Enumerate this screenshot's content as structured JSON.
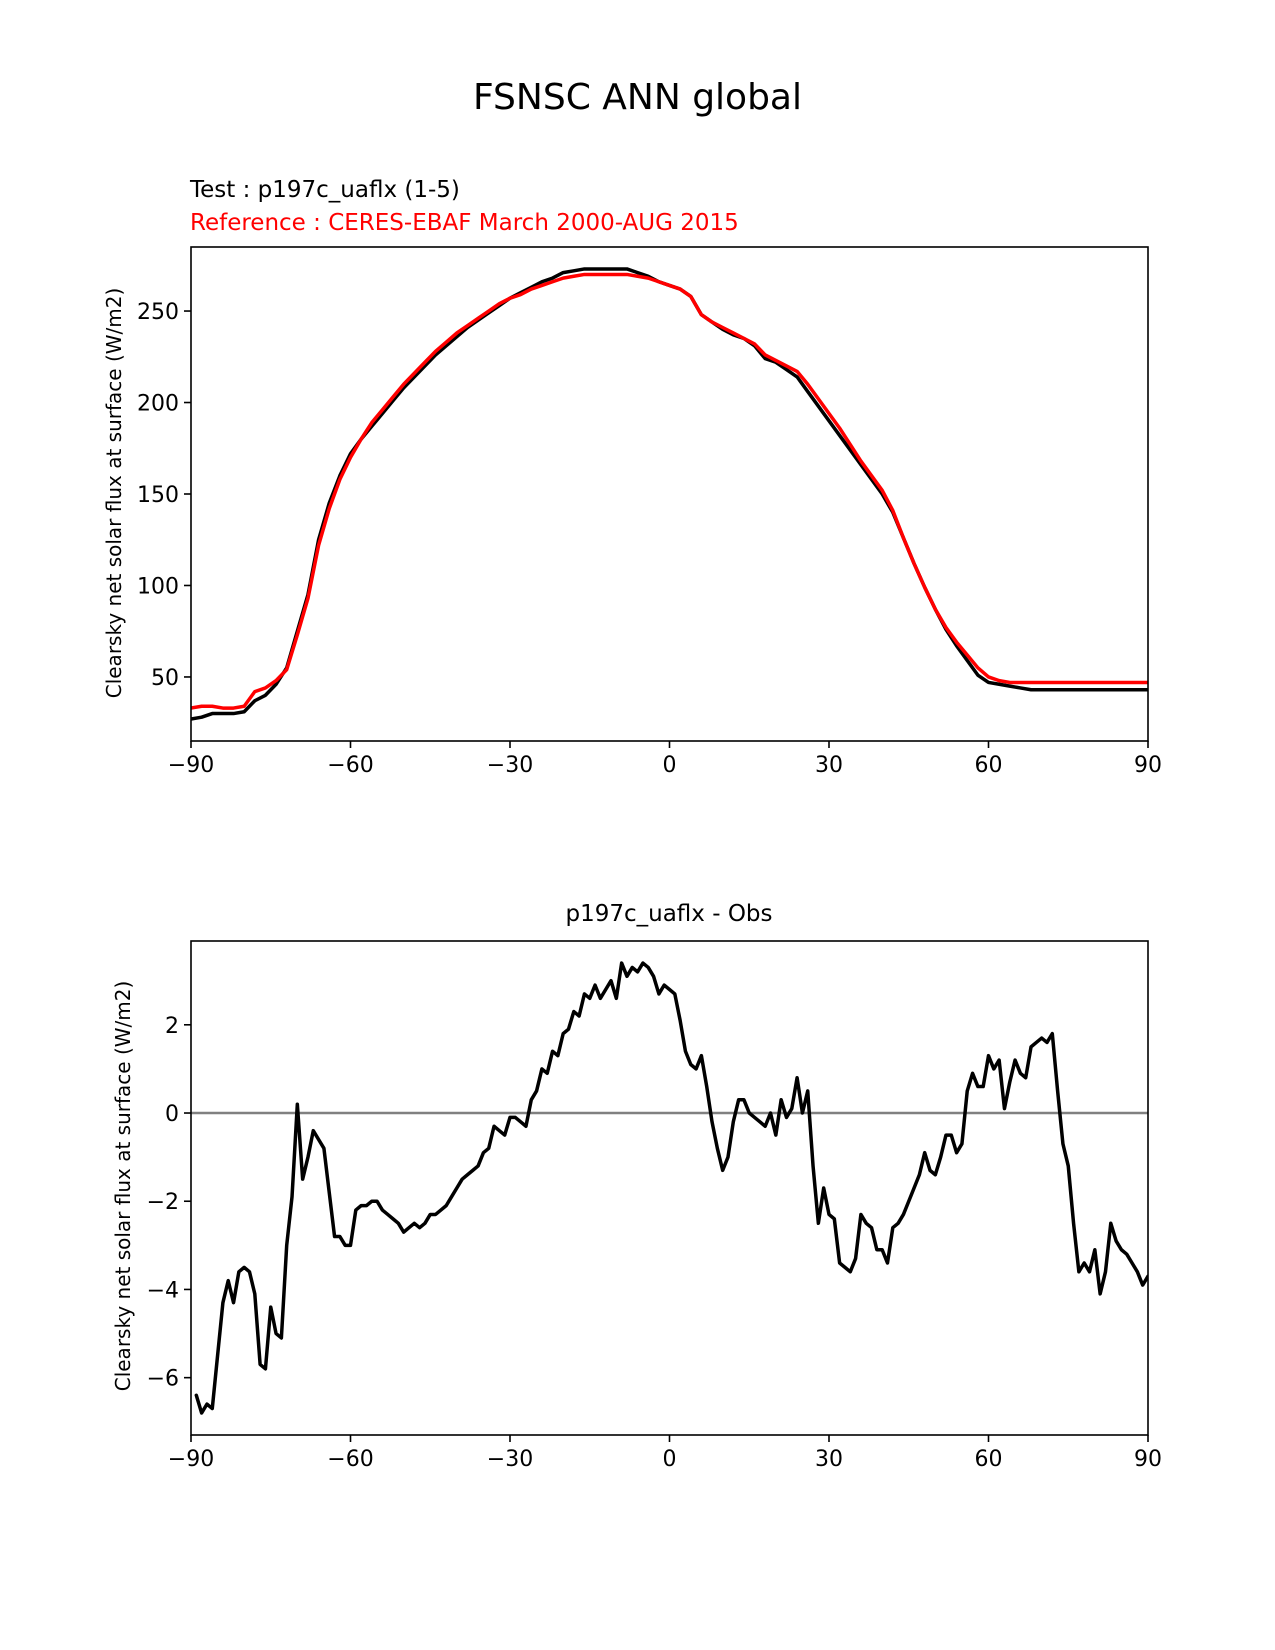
{
  "figure": {
    "suptitle": "FSNSC ANN global"
  },
  "chart_data": [
    {
      "type": "line",
      "test_label": "Test : p197c_uaflx (1-5)",
      "reference_label": "Reference : CERES-EBAF March 2000-AUG 2015",
      "title": "",
      "xlabel": "",
      "ylabel": "Clearsky net solar flux at surface (W/m2)",
      "xlim": [
        -90,
        90
      ],
      "ylim": [
        15,
        285
      ],
      "xticks": [
        -90,
        -60,
        -30,
        0,
        30,
        60,
        90
      ],
      "yticks": [
        50,
        100,
        150,
        200,
        250
      ],
      "grid": false,
      "series": [
        {
          "color": "#000000",
          "x": [
            -90,
            -88,
            -86,
            -84,
            -82,
            -80,
            -78,
            -76,
            -74,
            -72,
            -70,
            -68,
            -66,
            -64,
            -62,
            -60,
            -58,
            -56,
            -54,
            -52,
            -50,
            -48,
            -46,
            -44,
            -42,
            -40,
            -38,
            -36,
            -34,
            -32,
            -30,
            -28,
            -26,
            -24,
            -22,
            -20,
            -18,
            -16,
            -14,
            -12,
            -10,
            -8,
            -6,
            -4,
            -2,
            0,
            2,
            4,
            6,
            8,
            10,
            12,
            14,
            16,
            18,
            20,
            22,
            24,
            26,
            28,
            30,
            32,
            34,
            36,
            38,
            40,
            42,
            44,
            46,
            48,
            50,
            52,
            54,
            56,
            58,
            60,
            62,
            64,
            66,
            68,
            70,
            72,
            74,
            76,
            78,
            80,
            82,
            84,
            86,
            88,
            90
          ],
          "y": [
            27,
            28,
            30,
            30,
            30,
            31,
            37,
            40,
            46,
            55,
            75,
            95,
            125,
            145,
            160,
            172,
            180,
            187,
            194,
            201,
            208,
            214,
            220,
            226,
            231,
            236,
            241,
            245,
            249,
            253,
            257,
            260,
            263,
            266,
            268,
            271,
            272,
            273,
            273,
            273,
            273,
            273,
            271,
            269,
            266,
            264,
            262,
            258,
            248,
            244,
            240,
            237,
            235,
            231,
            224,
            222,
            218,
            214,
            206,
            198,
            190,
            182,
            174,
            166,
            158,
            150,
            140,
            126,
            112,
            99,
            87,
            76,
            67,
            59,
            51,
            47,
            46,
            45,
            44,
            43,
            43,
            43,
            43,
            43,
            43,
            43,
            43,
            43,
            43,
            43,
            43
          ]
        },
        {
          "color": "#ff0000",
          "x": [
            -90,
            -88,
            -86,
            -84,
            -82,
            -80,
            -78,
            -76,
            -74,
            -72,
            -70,
            -68,
            -66,
            -64,
            -62,
            -60,
            -58,
            -56,
            -54,
            -52,
            -50,
            -48,
            -46,
            -44,
            -42,
            -40,
            -38,
            -36,
            -34,
            -32,
            -30,
            -28,
            -26,
            -24,
            -22,
            -20,
            -18,
            -16,
            -14,
            -12,
            -10,
            -8,
            -6,
            -4,
            -2,
            0,
            2,
            4,
            6,
            8,
            10,
            12,
            14,
            16,
            18,
            20,
            22,
            24,
            26,
            28,
            30,
            32,
            34,
            36,
            38,
            40,
            42,
            44,
            46,
            48,
            50,
            52,
            54,
            56,
            58,
            60,
            62,
            64,
            66,
            68,
            70,
            72,
            74,
            76,
            78,
            80,
            82,
            84,
            86,
            88,
            90
          ],
          "y": [
            33,
            34,
            34,
            33,
            33,
            34,
            42,
            44,
            48,
            54,
            73,
            93,
            122,
            142,
            158,
            170,
            180,
            189,
            196,
            203,
            210,
            216,
            222,
            228,
            233,
            238,
            242,
            246,
            250,
            254,
            257,
            259,
            262,
            264,
            266,
            268,
            269,
            270,
            270,
            270,
            270,
            270,
            269,
            268,
            266,
            264,
            262,
            258,
            248,
            244,
            241,
            238,
            235,
            232,
            226,
            223,
            220,
            217,
            210,
            202,
            194,
            186,
            177,
            168,
            160,
            152,
            141,
            126,
            112,
            99,
            87,
            77,
            69,
            62,
            55,
            50,
            48,
            47,
            47,
            47,
            47,
            47,
            47,
            47,
            47,
            47,
            47,
            47,
            47,
            47,
            47
          ]
        }
      ]
    },
    {
      "type": "line",
      "title": "p197c_uaflx - Obs",
      "xlabel": "",
      "ylabel": "Clearsky net solar flux at surface (W/m2)",
      "xlim": [
        -90,
        90
      ],
      "ylim": [
        -7.3,
        3.9
      ],
      "xticks": [
        -90,
        -60,
        -30,
        0,
        30,
        60,
        90
      ],
      "yticks": [
        -6,
        -4,
        -2,
        0,
        2
      ],
      "grid": false,
      "zero_line": {
        "y": 0,
        "color": "#808080"
      },
      "series": [
        {
          "color": "#000000",
          "x": [
            -89,
            -88,
            -87,
            -86,
            -85,
            -84,
            -83,
            -82,
            -81,
            -80,
            -79,
            -78,
            -77,
            -76,
            -75,
            -74,
            -73,
            -72,
            -71,
            -70,
            -69,
            -68,
            -67,
            -66,
            -65,
            -64,
            -63,
            -62,
            -61,
            -60,
            -59,
            -58,
            -57,
            -56,
            -55,
            -54,
            -53,
            -52,
            -51,
            -50,
            -49,
            -48,
            -47,
            -46,
            -45,
            -44,
            -43,
            -42,
            -41,
            -40,
            -39,
            -38,
            -37,
            -36,
            -35,
            -34,
            -33,
            -32,
            -31,
            -30,
            -29,
            -28,
            -27,
            -26,
            -25,
            -24,
            -23,
            -22,
            -21,
            -20,
            -19,
            -18,
            -17,
            -16,
            -15,
            -14,
            -13,
            -12,
            -11,
            -10,
            -9,
            -8,
            -7,
            -6,
            -5,
            -4,
            -3,
            -2,
            -1,
            0,
            1,
            2,
            3,
            4,
            5,
            6,
            7,
            8,
            9,
            10,
            11,
            12,
            13,
            14,
            15,
            16,
            17,
            18,
            19,
            20,
            21,
            22,
            23,
            24,
            25,
            26,
            27,
            28,
            29,
            30,
            31,
            32,
            33,
            34,
            35,
            36,
            37,
            38,
            39,
            40,
            41,
            42,
            43,
            44,
            45,
            46,
            47,
            48,
            49,
            50,
            51,
            52,
            53,
            54,
            55,
            56,
            57,
            58,
            59,
            60,
            61,
            62,
            63,
            64,
            65,
            66,
            67,
            68,
            69,
            70,
            71,
            72,
            73,
            74,
            75,
            76,
            77,
            78,
            79,
            80,
            81,
            82,
            83,
            84,
            85,
            86,
            87,
            88,
            89,
            90
          ],
          "y": [
            -6.4,
            -6.8,
            -6.6,
            -6.7,
            -5.5,
            -4.3,
            -3.8,
            -4.3,
            -3.6,
            -3.5,
            -3.6,
            -4.1,
            -5.7,
            -5.8,
            -4.4,
            -5.0,
            -5.1,
            -3.0,
            -1.9,
            0.2,
            -1.5,
            -1.0,
            -0.4,
            -0.6,
            -0.8,
            -1.8,
            -2.8,
            -2.8,
            -3.0,
            -3.0,
            -2.2,
            -2.1,
            -2.1,
            -2.0,
            -2.0,
            -2.2,
            -2.3,
            -2.4,
            -2.5,
            -2.7,
            -2.6,
            -2.5,
            -2.6,
            -2.5,
            -2.3,
            -2.3,
            -2.2,
            -2.1,
            -1.9,
            -1.7,
            -1.5,
            -1.4,
            -1.3,
            -1.2,
            -0.9,
            -0.8,
            -0.3,
            -0.4,
            -0.5,
            -0.1,
            -0.1,
            -0.2,
            -0.3,
            0.3,
            0.5,
            1.0,
            0.9,
            1.4,
            1.3,
            1.8,
            1.9,
            2.3,
            2.2,
            2.7,
            2.6,
            2.9,
            2.6,
            2.8,
            3.0,
            2.6,
            3.4,
            3.1,
            3.3,
            3.2,
            3.4,
            3.3,
            3.1,
            2.7,
            2.9,
            2.8,
            2.7,
            2.1,
            1.4,
            1.1,
            1.0,
            1.3,
            0.6,
            -0.2,
            -0.8,
            -1.3,
            -1.0,
            -0.2,
            0.3,
            0.3,
            0.0,
            -0.1,
            -0.2,
            -0.3,
            0.0,
            -0.5,
            0.3,
            -0.1,
            0.1,
            0.8,
            0.0,
            0.5,
            -1.2,
            -2.5,
            -1.7,
            -2.3,
            -2.4,
            -3.4,
            -3.5,
            -3.6,
            -3.3,
            -2.3,
            -2.5,
            -2.6,
            -3.1,
            -3.1,
            -3.4,
            -2.6,
            -2.5,
            -2.3,
            -2.0,
            -1.7,
            -1.4,
            -0.9,
            -1.3,
            -1.4,
            -1.0,
            -0.5,
            -0.5,
            -0.9,
            -0.7,
            0.5,
            0.9,
            0.6,
            0.6,
            1.3,
            1.0,
            1.2,
            0.1,
            0.7,
            1.2,
            0.9,
            0.8,
            1.5,
            1.6,
            1.7,
            1.6,
            1.8,
            0.5,
            -0.7,
            -1.2,
            -2.5,
            -3.6,
            -3.4,
            -3.6,
            -3.1,
            -4.1,
            -3.6,
            -2.5,
            -2.9,
            -3.1,
            -3.2,
            -3.4,
            -3.6,
            -3.9,
            -3.7
          ]
        }
      ]
    }
  ]
}
